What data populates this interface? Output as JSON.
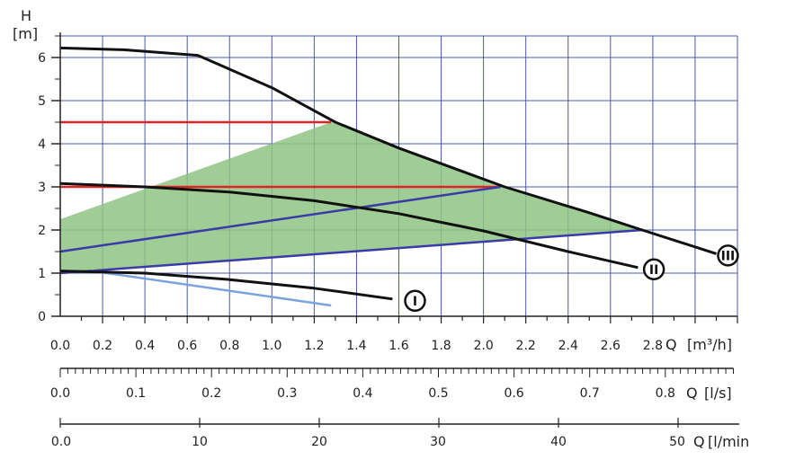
{
  "chart_data": {
    "type": "line",
    "y_axis": {
      "label": "H",
      "unit": "[m]",
      "range": [
        0,
        6.5
      ],
      "ticks": [
        "0",
        "1",
        "2",
        "3",
        "4",
        "5",
        "6"
      ],
      "grid": true
    },
    "x_axis": {
      "range": [
        0,
        3.2
      ],
      "ticks": [
        "0.0",
        "0.2",
        "0.4",
        "0.6",
        "0.8",
        "1.0",
        "1.2",
        "1.4",
        "1.6",
        "1.8",
        "2.0",
        "2.2",
        "2.4",
        "2.6",
        "2.8"
      ],
      "label": "Q [m³/h]",
      "label_prefix": "Q",
      "label_unit": "[m³/h]"
    },
    "secondary_axes": [
      {
        "label": "Q [l/s]",
        "label_prefix": "Q",
        "label_unit": "[l/s]",
        "ticks": [
          "0.0",
          "0.1",
          "0.2",
          "0.3",
          "0.4",
          "0.5",
          "0.6",
          "0.7",
          "0.8"
        ]
      },
      {
        "label": "Q [l/min",
        "label_prefix": "Q",
        "label_unit": "[l/min",
        "ticks": [
          "0.0",
          "10",
          "20",
          "30",
          "40",
          "50"
        ]
      }
    ],
    "series": [
      {
        "name": "I",
        "color": "#111111",
        "points": [
          [
            0,
            1.05
          ],
          [
            0.4,
            1.0
          ],
          [
            0.8,
            0.85
          ],
          [
            1.2,
            0.65
          ],
          [
            1.57,
            0.4
          ]
        ]
      },
      {
        "name": "II",
        "color": "#111111",
        "points": [
          [
            0,
            3.08
          ],
          [
            0.4,
            3.0
          ],
          [
            0.8,
            2.88
          ],
          [
            1.2,
            2.68
          ],
          [
            1.6,
            2.38
          ],
          [
            2.0,
            1.98
          ],
          [
            2.4,
            1.5
          ],
          [
            2.73,
            1.13
          ]
        ]
      },
      {
        "name": "III",
        "color": "#111111",
        "points": [
          [
            0,
            6.22
          ],
          [
            0.3,
            6.18
          ],
          [
            0.65,
            6.05
          ],
          [
            1.0,
            5.3
          ],
          [
            1.3,
            4.5
          ],
          [
            1.6,
            3.9
          ],
          [
            2.1,
            3.0
          ],
          [
            2.5,
            2.4
          ],
          [
            2.75,
            2.0
          ],
          [
            3.1,
            1.45
          ]
        ]
      }
    ],
    "extra_lines": [
      {
        "color": "#e02424",
        "points": [
          [
            0,
            4.5
          ],
          [
            1.28,
            4.5
          ]
        ]
      },
      {
        "color": "#e02424",
        "points": [
          [
            0,
            3.0
          ],
          [
            2.08,
            3.0
          ]
        ]
      },
      {
        "color": "#3a3aa8",
        "points": [
          [
            0,
            1.5
          ],
          [
            2.08,
            3.0
          ]
        ]
      },
      {
        "color": "#3a3aa8",
        "points": [
          [
            0,
            1.0
          ],
          [
            2.75,
            2.0
          ]
        ]
      },
      {
        "color": "#7aa3de",
        "points": [
          [
            0.15,
            1.05
          ],
          [
            1.28,
            0.25
          ]
        ]
      }
    ],
    "shaded_region": {
      "color": "#8fc383",
      "points": [
        [
          0,
          2.25
        ],
        [
          1.28,
          4.5
        ],
        [
          2.08,
          3.0
        ],
        [
          2.75,
          2.0
        ],
        [
          0,
          1.0
        ]
      ]
    },
    "markers": [
      {
        "label": "I",
        "x": 1.6,
        "y": 0.4
      },
      {
        "label": "II",
        "x": 2.75,
        "y": 1.13
      },
      {
        "label": "III",
        "x": 3.1,
        "y": 1.45
      }
    ]
  }
}
